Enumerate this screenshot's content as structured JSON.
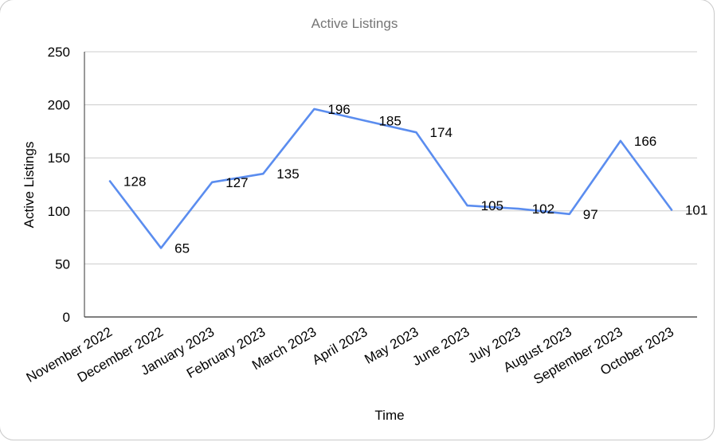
{
  "chart_data": {
    "type": "line",
    "title": "Active Listings",
    "xlabel": "Time",
    "ylabel": "Active Listings",
    "categories": [
      "November 2022",
      "December 2022",
      "January 2023",
      "February 2023",
      "March 2023",
      "April 2023",
      "May 2023",
      "June 2023",
      "July 2023",
      "August 2023",
      "September 2023",
      "October 2023"
    ],
    "series": [
      {
        "values": [
          128,
          65,
          127,
          135,
          196,
          185,
          174,
          105,
          102,
          97,
          166,
          101
        ]
      }
    ],
    "ylim": [
      0,
      250
    ],
    "yticks": [
      0,
      50,
      100,
      150,
      200,
      250
    ],
    "grid": true,
    "legend": "none",
    "line_color": "#5b8def"
  }
}
